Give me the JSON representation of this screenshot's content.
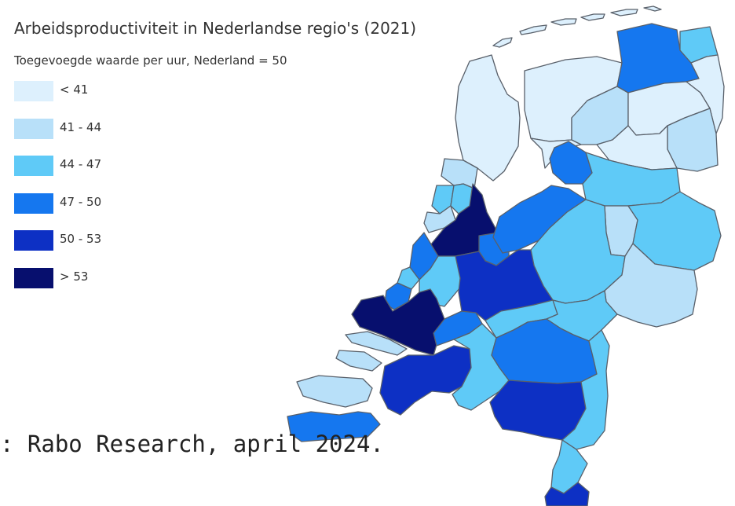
{
  "title": "Arbeidsproductiviteit in Nederlandse regio's (2021)",
  "subtitle": "Toegevoegde waarde per uur, Nederland = 50",
  "legend": [
    {
      "label": "< 41",
      "color": "#ddf0fd"
    },
    {
      "label": "41 - 44",
      "color": "#b8e0f9"
    },
    {
      "label": "44 - 47",
      "color": "#5fcaf7"
    },
    {
      "label": "47 - 50",
      "color": "#1577ef"
    },
    {
      "label": "50 - 53",
      "color": "#0d30c4"
    },
    {
      "label": "> 53",
      "color": "#070f6e"
    }
  ],
  "source": ": Rabo Research, april 2024.",
  "regions": [
    {
      "id": "wadden-islands",
      "cls": 0
    },
    {
      "id": "noord-friesland",
      "cls": 0
    },
    {
      "id": "zuidwest-friesland",
      "cls": 0
    },
    {
      "id": "zuidoost-friesland",
      "cls": 1
    },
    {
      "id": "groningen-stad",
      "cls": 3
    },
    {
      "id": "oost-groningen",
      "cls": 0
    },
    {
      "id": "delfzijl",
      "cls": 2
    },
    {
      "id": "noord-drenthe",
      "cls": 0
    },
    {
      "id": "zuidoost-drenthe",
      "cls": 1
    },
    {
      "id": "zuidwest-drenthe",
      "cls": 0
    },
    {
      "id": "kop-noord-holland",
      "cls": 0
    },
    {
      "id": "alkmaar",
      "cls": 1
    },
    {
      "id": "ijmond",
      "cls": 2
    },
    {
      "id": "zaanstreek",
      "cls": 2
    },
    {
      "id": "groot-amsterdam",
      "cls": 5
    },
    {
      "id": "agglomeratie-haarlem",
      "cls": 1
    },
    {
      "id": "het-gooi",
      "cls": 3
    },
    {
      "id": "flevoland",
      "cls": 3
    },
    {
      "id": "noordoostpolder",
      "cls": 3
    },
    {
      "id": "noord-overijssel",
      "cls": 2
    },
    {
      "id": "zuidwest-overijssel",
      "cls": 1
    },
    {
      "id": "twente",
      "cls": 2
    },
    {
      "id": "veluwe",
      "cls": 2
    },
    {
      "id": "achterhoek",
      "cls": 1
    },
    {
      "id": "leiden-bollenstreek",
      "cls": 3
    },
    {
      "id": "den-haag",
      "cls": 2
    },
    {
      "id": "delft-westland",
      "cls": 3
    },
    {
      "id": "oost-zuid-holland",
      "cls": 2
    },
    {
      "id": "groot-rijnmond",
      "cls": 5
    },
    {
      "id": "zuidoost-zuid-holland",
      "cls": 3
    },
    {
      "id": "utrecht",
      "cls": 4
    },
    {
      "id": "arnhem-nijmegen",
      "cls": 2
    },
    {
      "id": "zuidwest-gelderland",
      "cls": 2
    },
    {
      "id": "zeeuwsch-vlaanderen",
      "cls": 3
    },
    {
      "id": "overig-zeeland",
      "cls": 1
    },
    {
      "id": "west-noord-brabant",
      "cls": 4
    },
    {
      "id": "midden-noord-brabant",
      "cls": 2
    },
    {
      "id": "noordoost-noord-brabant",
      "cls": 3
    },
    {
      "id": "zuidoost-noord-brabant",
      "cls": 4
    },
    {
      "id": "noord-limburg",
      "cls": 2
    },
    {
      "id": "midden-limburg",
      "cls": 2
    },
    {
      "id": "zuid-limburg",
      "cls": 4
    }
  ]
}
